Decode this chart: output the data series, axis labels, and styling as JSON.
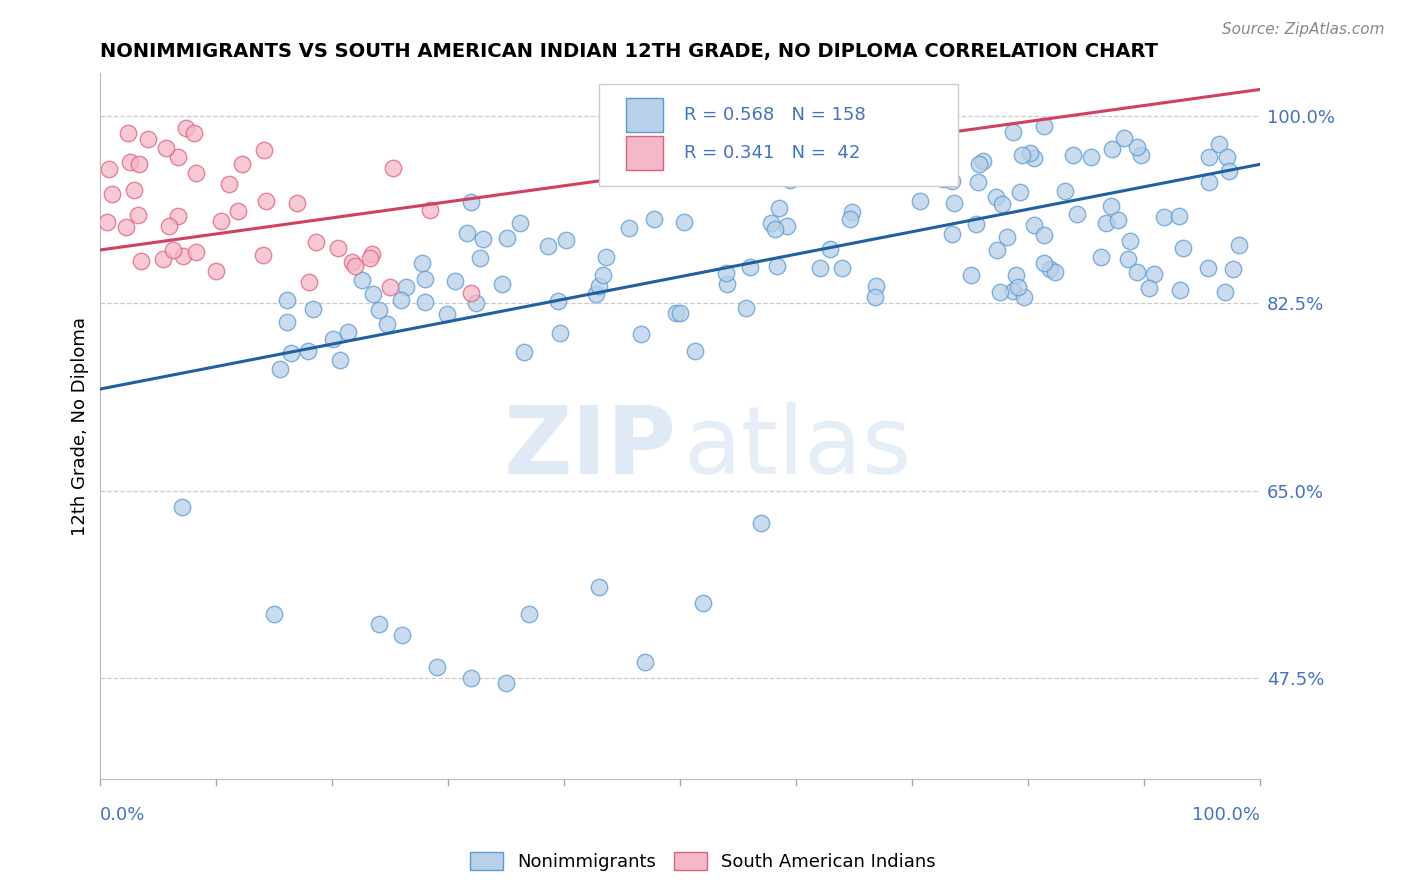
{
  "title": "NONIMMIGRANTS VS SOUTH AMERICAN INDIAN 12TH GRADE, NO DIPLOMA CORRELATION CHART",
  "source": "Source: ZipAtlas.com",
  "ylabel": "12th Grade, No Diploma",
  "ylabel_right_ticks": [
    "47.5%",
    "65.0%",
    "82.5%",
    "100.0%"
  ],
  "ylabel_right_values": [
    0.475,
    0.65,
    0.825,
    1.0
  ],
  "legend_labels": [
    "Nonimmigrants",
    "South American Indians"
  ],
  "r_blue": 0.568,
  "n_blue": 158,
  "r_pink": 0.341,
  "n_pink": 42,
  "color_blue_fill": "#b8d0e8",
  "color_blue_edge": "#5b9bd5",
  "color_pink_fill": "#f4b8c8",
  "color_pink_edge": "#e06080",
  "color_blue_line": "#2060a0",
  "color_pink_line": "#d04060",
  "xlim": [
    0.0,
    1.0
  ],
  "ylim": [
    0.38,
    1.04
  ],
  "watermark_zip": "ZIP",
  "watermark_atlas": "atlas"
}
